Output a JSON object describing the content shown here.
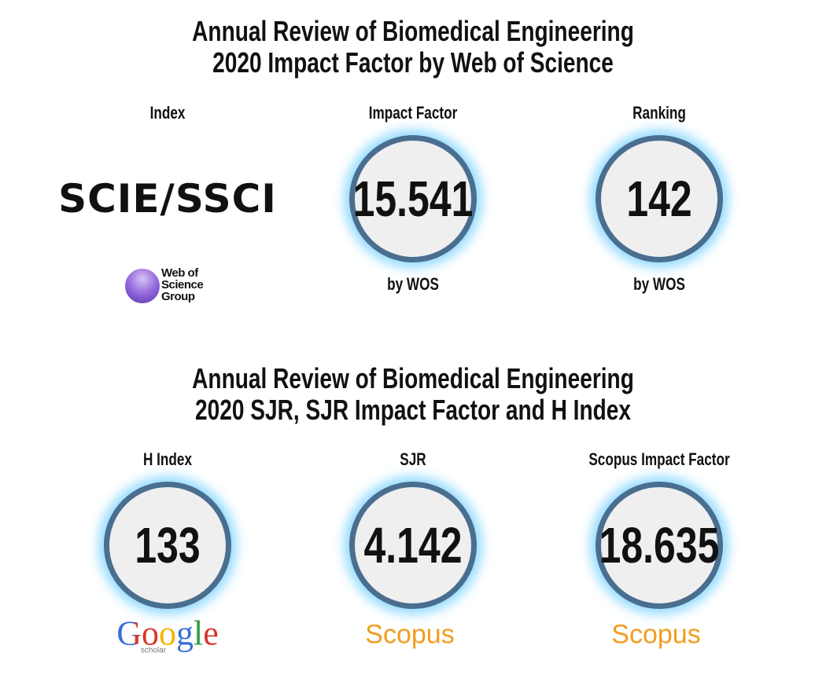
{
  "sections": [
    {
      "title": [
        "Annual Review of Biomedical Engineering",
        "2020 Impact Factor by Web of Science"
      ],
      "items": [
        {
          "label": "Index",
          "value": "SCIE/SSCI",
          "logo": [
            "Web of",
            "Science",
            "Group"
          ]
        },
        {
          "label": "Impact Factor",
          "value": 15.541,
          "note": "by WOS"
        },
        {
          "label": "Ranking",
          "value": 142,
          "note": "by WOS"
        }
      ]
    },
    {
      "title": [
        "Annual Review of Biomedical Engineering",
        "2020 SJR, SJR Impact Factor and H Index"
      ],
      "items": [
        {
          "label": "H Index",
          "value": 133,
          "logo": [
            "Google",
            "scholar"
          ]
        },
        {
          "label": "SJR",
          "value": 4.142,
          "logo": [
            "Scopus"
          ]
        },
        {
          "label": "Scopus Impact Factor",
          "value": 18.635,
          "logo": [
            "Scopus"
          ]
        }
      ]
    }
  ]
}
